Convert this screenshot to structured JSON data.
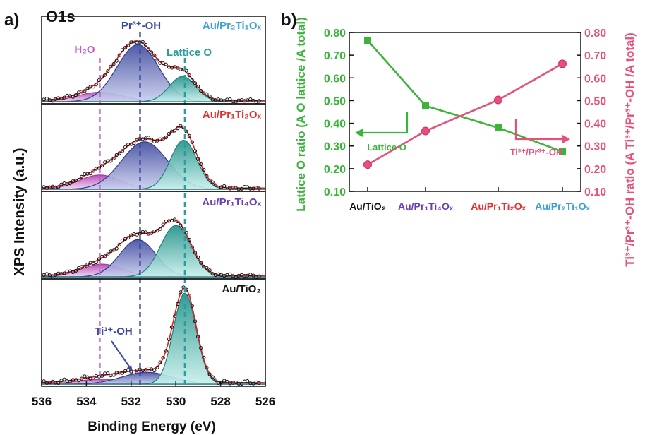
{
  "panel_a": {
    "label": "a)",
    "title": "O1s",
    "ylabel": "XPS Intensity (a.u.)",
    "xlabel": "Binding Energy (eV)",
    "x_ticks": [
      "536",
      "534",
      "532",
      "530",
      "528",
      "526"
    ],
    "annotations": {
      "h2o": "H₂O",
      "pr_oh": "Pr³⁺-OH",
      "lattice_o": "Lattice O",
      "ti_oh": "Ti³⁺-OH"
    },
    "sample_labels": [
      "Au/Pr₂Ti₁Oₓ",
      "Au/Pr₁Ti₂Oₓ",
      "Au/Pr₁Ti₄Oₓ",
      "Au/TiO₂"
    ],
    "colors": {
      "h2o": "#c060c0",
      "pr_oh": "#3a4aa0",
      "lattice": "#2a9f9a",
      "fit": "#e02020"
    }
  },
  "panel_b": {
    "label": "b)",
    "ylabel_left": "Lattice O ratio (A O lattice /A total)",
    "ylabel_right": "Ti³⁺/Pr³⁺-OH ratio (A Ti³⁺/Pr³⁺-OH /A total)",
    "legend_left": "Lattice O",
    "legend_right": "Ti³⁺/Pr³⁺-OH",
    "colors": {
      "lattice": "#3cb43c",
      "ti_pr": "#e8507a"
    }
  },
  "chart_data": [
    {
      "type": "line",
      "xlabel": "Binding Energy (eV)",
      "ylabel": "XPS Intensity (a.u.)",
      "xlim": [
        536,
        526
      ],
      "x_ticks": [
        536,
        534,
        532,
        530,
        528,
        526
      ],
      "reference_lines": [
        {
          "name": "H₂O",
          "x": 533.4
        },
        {
          "name": "Pr³⁺-OH",
          "x": 531.6
        },
        {
          "name": "Lattice O",
          "x": 529.6
        }
      ],
      "series": [
        {
          "name": "Au/Pr₂Ti₁Oₓ",
          "peaks": [
            {
              "component": "H₂O",
              "center": 533.4,
              "fwhm": 2.4,
              "height": 0.12
            },
            {
              "component": "Pr³⁺-OH",
              "center": 531.7,
              "fwhm": 2.2,
              "height": 0.72
            },
            {
              "component": "Lattice O",
              "center": 529.7,
              "fwhm": 1.4,
              "height": 0.32
            }
          ]
        },
        {
          "name": "Au/Pr₁Ti₂Oₓ",
          "peaks": [
            {
              "component": "H₂O",
              "center": 533.4,
              "fwhm": 2.2,
              "height": 0.18
            },
            {
              "component": "Pr³⁺-OH",
              "center": 531.4,
              "fwhm": 2.4,
              "height": 0.6
            },
            {
              "component": "Lattice O",
              "center": 529.65,
              "fwhm": 1.4,
              "height": 0.62
            }
          ]
        },
        {
          "name": "Au/Pr₁Ti₄Oₓ",
          "peaks": [
            {
              "component": "H₂O",
              "center": 533.3,
              "fwhm": 2.2,
              "height": 0.16
            },
            {
              "component": "Pr³⁺-OH",
              "center": 531.7,
              "fwhm": 1.9,
              "height": 0.47
            },
            {
              "component": "Lattice O",
              "center": 530.0,
              "fwhm": 1.6,
              "height": 0.65
            }
          ]
        },
        {
          "name": "Au/TiO₂",
          "peaks": [
            {
              "component": "H₂O",
              "center": 533.4,
              "fwhm": 2.4,
              "height": 0.05
            },
            {
              "component": "Ti³⁺-OH",
              "center": 531.3,
              "fwhm": 2.6,
              "height": 0.12
            },
            {
              "component": "Lattice O",
              "center": 529.6,
              "fwhm": 1.2,
              "height": 0.92
            }
          ]
        }
      ]
    },
    {
      "type": "line",
      "categories": [
        "Au/TiO₂",
        "Au/Pr₁Ti₄Oₓ",
        "Au/Pr₁Ti₂Oₓ",
        "Au/Pr₂Ti₁Oₓ"
      ],
      "category_colors": [
        "#111111",
        "#6a3fb0",
        "#e03030",
        "#3ba0d8"
      ],
      "ylim": [
        0.1,
        0.8
      ],
      "y_ticks": [
        0.1,
        0.2,
        0.3,
        0.4,
        0.5,
        0.6,
        0.7,
        0.8
      ],
      "ylabel": "Lattice O ratio (A O lattice /A total)",
      "ylabel_right": "Ti³⁺/Pr³⁺-OH ratio (A Ti³⁺/Pr³⁺-OH /A total)",
      "series": [
        {
          "name": "Lattice O",
          "axis": "left",
          "marker": "square",
          "color": "#3cb43c",
          "values": [
            0.765,
            0.477,
            0.38,
            0.275
          ]
        },
        {
          "name": "Ti³⁺/Pr³⁺-OH",
          "axis": "right",
          "marker": "circle",
          "color": "#e8507a",
          "values": [
            0.218,
            0.366,
            0.503,
            0.662
          ]
        }
      ]
    }
  ]
}
